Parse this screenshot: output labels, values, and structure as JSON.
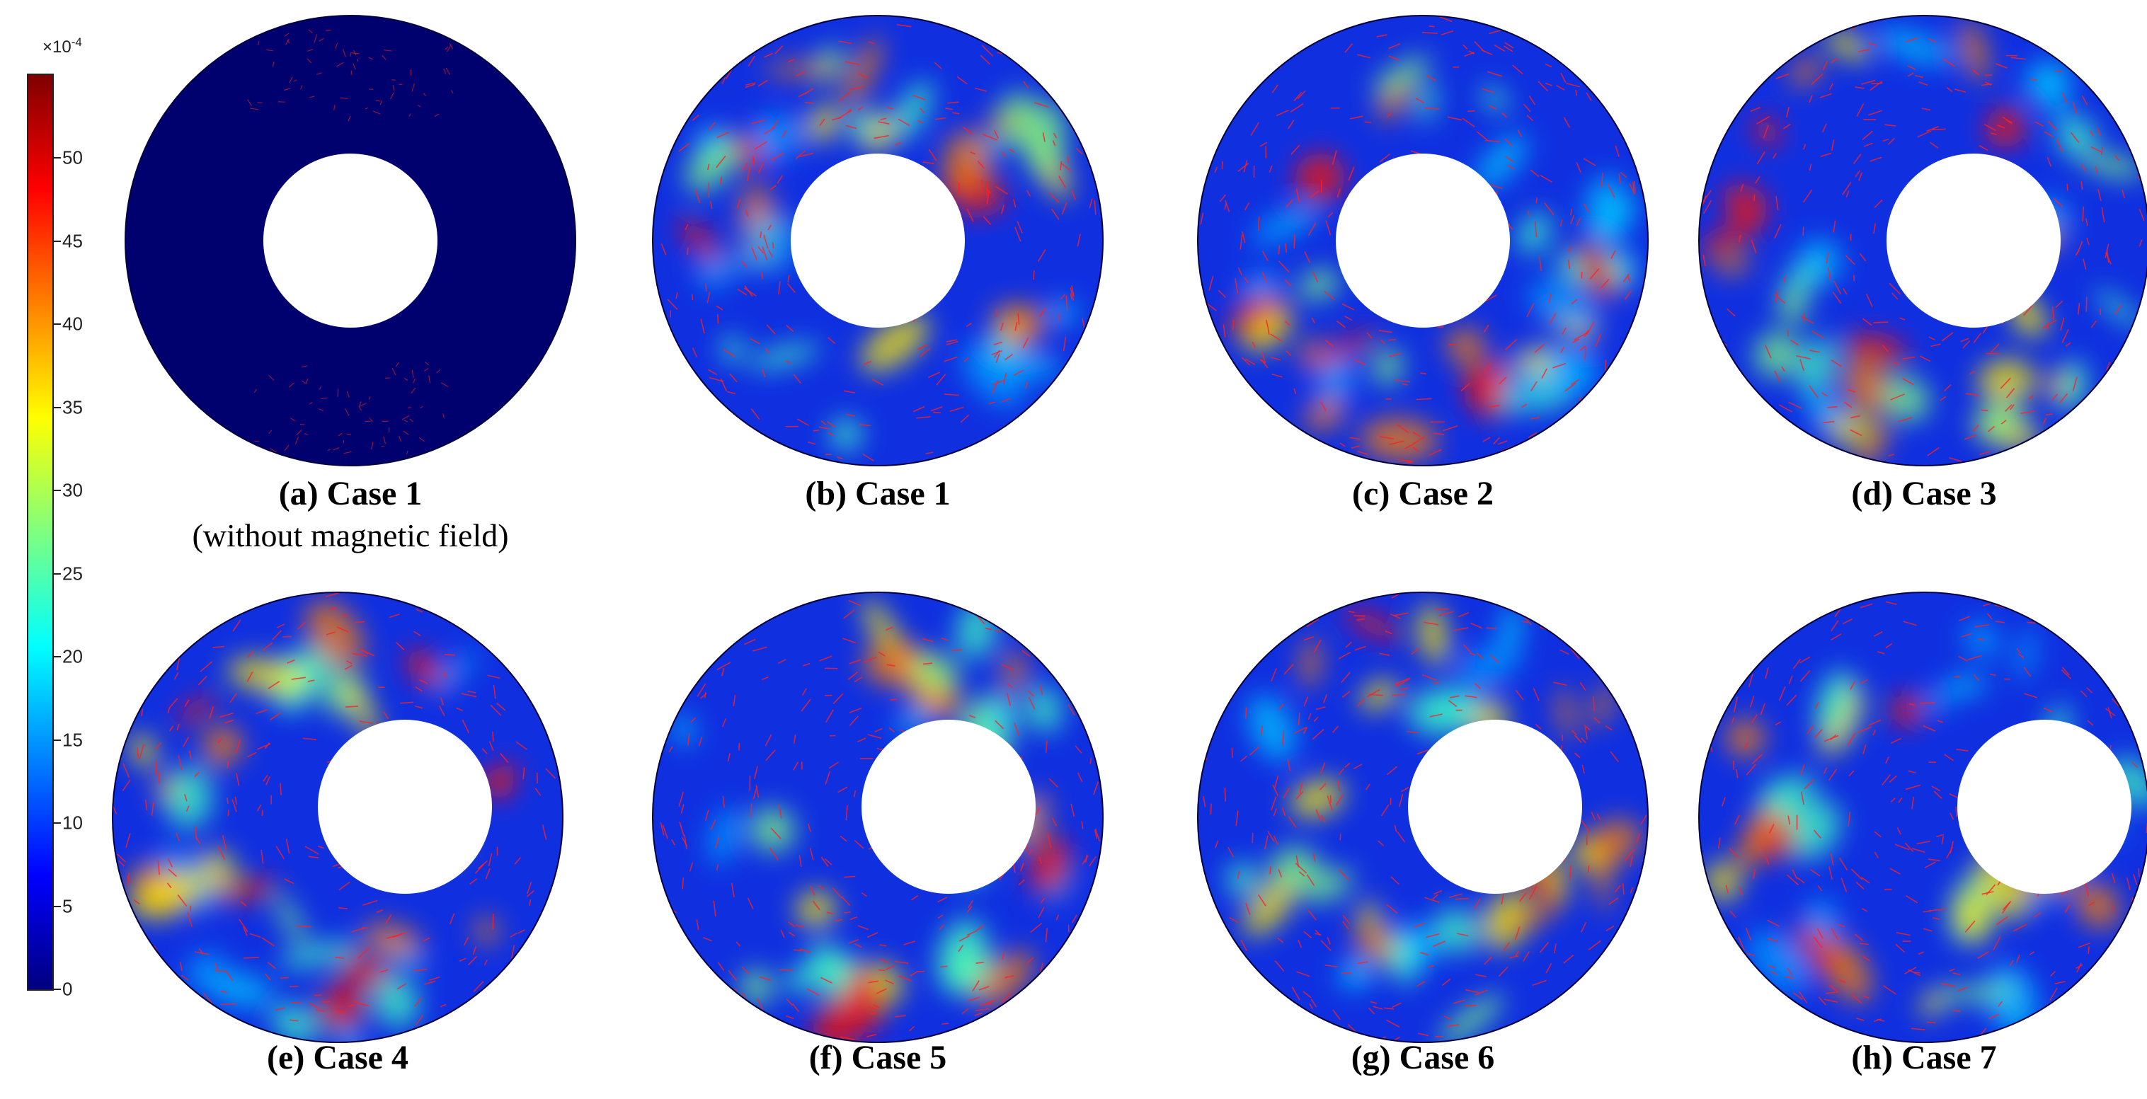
{
  "colorbar": {
    "exponent_base": "×10",
    "exponent_power": "-4",
    "ticks": [
      "0",
      "5",
      "10",
      "15",
      "20",
      "25",
      "30",
      "35",
      "40",
      "45",
      "50"
    ],
    "min": 0,
    "max": 55
  },
  "panels": [
    {
      "id": "a",
      "caption": "(a) Case 1",
      "subcaption": "(without magnetic field)",
      "field": "low"
    },
    {
      "id": "b",
      "caption": "(b) Case 1",
      "field": "flow"
    },
    {
      "id": "c",
      "caption": "(c) Case 2",
      "field": "flow"
    },
    {
      "id": "d",
      "caption": "(d) Case 3",
      "field": "flow"
    },
    {
      "id": "e",
      "caption": "(e) Case 4",
      "field": "flow"
    },
    {
      "id": "f",
      "caption": "(f) Case 5",
      "field": "flow"
    },
    {
      "id": "g",
      "caption": "(g) Case 6",
      "field": "flow"
    },
    {
      "id": "h",
      "caption": "(h) Case 7",
      "field": "flow"
    }
  ]
}
